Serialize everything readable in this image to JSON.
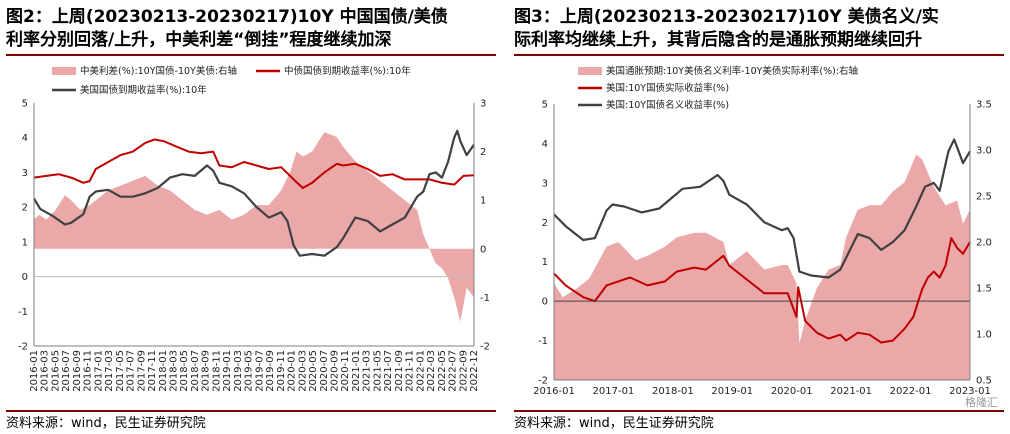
{
  "left": {
    "title_l1": "图2：上周(20230213-20230217)10Y 中国国债/美债",
    "title_l2": "利率分别回落/上升，中美利差“倒挂”程度继续加深",
    "source": "资料来源：wind，民生证券研究院"
  },
  "right": {
    "title_l1": "图3：上周(20230213-20230217)10Y 美债名义/实",
    "title_l2": "际利率均继续上升，其背后隐含的是通胀预期继续回升",
    "source": "资料来源：wind，民生证券研究院"
  },
  "watermark": "格隆汇",
  "colors": {
    "area": "#eaa8a8",
    "red": "#c00000",
    "dark": "#404040"
  },
  "chart_data": [
    {
      "type": "line",
      "legend_position": "top",
      "grid": false,
      "x_ticks": [
        "2016-01",
        "2016-03",
        "2016-05",
        "2016-07",
        "2016-09",
        "2016-11",
        "2017-01",
        "2017-03",
        "2017-05",
        "2017-07",
        "2017-09",
        "2017-11",
        "2018-01",
        "2018-03",
        "2018-05",
        "2018-07",
        "2018-09",
        "2018-11",
        "2019-01",
        "2019-03",
        "2019-05",
        "2019-07",
        "2019-09",
        "2019-11",
        "2020-01",
        "2020-03",
        "2020-05",
        "2020-07",
        "2020-09",
        "2020-11",
        "2021-01",
        "2021-03",
        "2021-05",
        "2021-07",
        "2021-09",
        "2021-11",
        "2022-01",
        "2022-03",
        "2022-05",
        "2022-07",
        "2022-09",
        "2022-12"
      ],
      "xlim": [
        2016.0,
        2023.12
      ],
      "ylim_left": [
        -2,
        5
      ],
      "ylim_right": [
        -2,
        3
      ],
      "yticks_left": [
        "-2",
        "-1",
        "0",
        "1",
        "2",
        "3",
        "4",
        "5"
      ],
      "yticks_right": [
        "-2",
        "-1",
        "0",
        "1",
        "2",
        "3"
      ],
      "series": [
        {
          "name": "中美利差(%):10Y国债-10Y美债:右轴",
          "type": "area",
          "axis": "right",
          "color": "#eaa8a8",
          "x": [
            2016.0,
            2016.08,
            2016.2,
            2016.35,
            2016.5,
            2016.6,
            2016.75,
            2016.9,
            2017.0,
            2017.2,
            2017.4,
            2017.6,
            2017.8,
            2018.0,
            2018.2,
            2018.4,
            2018.6,
            2018.8,
            2019.0,
            2019.2,
            2019.4,
            2019.6,
            2019.8,
            2020.0,
            2020.15,
            2020.25,
            2020.35,
            2020.5,
            2020.7,
            2020.9,
            2021.0,
            2021.2,
            2021.4,
            2021.6,
            2021.8,
            2022.0,
            2022.2,
            2022.3,
            2022.4,
            2022.5,
            2022.6,
            2022.7,
            2022.8,
            2022.9,
            2023.0,
            2023.12
          ],
          "values": [
            0.6,
            0.7,
            0.6,
            0.8,
            1.1,
            1.0,
            0.8,
            0.9,
            1.0,
            1.2,
            1.3,
            1.4,
            1.5,
            1.3,
            1.2,
            1.0,
            0.8,
            0.7,
            0.8,
            0.6,
            0.7,
            0.9,
            0.9,
            1.2,
            1.6,
            2.0,
            1.9,
            2.0,
            2.4,
            2.3,
            2.1,
            1.8,
            1.6,
            1.4,
            1.2,
            1.0,
            0.8,
            0.3,
            0.0,
            -0.3,
            -0.4,
            -0.6,
            -1.0,
            -1.5,
            -0.8,
            -1.0
          ]
        },
        {
          "name": "中债国债到期收益率(%):10年",
          "type": "line",
          "axis": "left",
          "color": "#c00000",
          "x": [
            2016.0,
            2016.2,
            2016.4,
            2016.6,
            2016.8,
            2016.9,
            2017.0,
            2017.2,
            2017.4,
            2017.6,
            2017.8,
            2017.95,
            2018.1,
            2018.3,
            2018.5,
            2018.7,
            2018.9,
            2019.0,
            2019.2,
            2019.4,
            2019.6,
            2019.8,
            2020.0,
            2020.2,
            2020.35,
            2020.5,
            2020.7,
            2020.9,
            2021.0,
            2021.2,
            2021.4,
            2021.6,
            2021.8,
            2022.0,
            2022.2,
            2022.4,
            2022.6,
            2022.8,
            2022.95,
            2023.12
          ],
          "values": [
            2.85,
            2.9,
            2.95,
            2.85,
            2.7,
            2.75,
            3.1,
            3.3,
            3.5,
            3.6,
            3.85,
            3.95,
            3.9,
            3.75,
            3.6,
            3.55,
            3.6,
            3.2,
            3.15,
            3.3,
            3.2,
            3.1,
            3.15,
            2.8,
            2.55,
            2.7,
            3.0,
            3.25,
            3.2,
            3.25,
            3.1,
            2.9,
            2.95,
            2.8,
            2.8,
            2.8,
            2.7,
            2.65,
            2.9,
            2.92
          ]
        },
        {
          "name": "美国国债到期收益率(%):10年",
          "type": "line",
          "axis": "left",
          "color": "#404040",
          "x": [
            2016.0,
            2016.1,
            2016.3,
            2016.5,
            2016.6,
            2016.8,
            2016.9,
            2017.0,
            2017.2,
            2017.4,
            2017.6,
            2017.8,
            2018.0,
            2018.2,
            2018.4,
            2018.6,
            2018.8,
            2018.9,
            2019.0,
            2019.2,
            2019.4,
            2019.6,
            2019.8,
            2020.0,
            2020.1,
            2020.2,
            2020.3,
            2020.5,
            2020.7,
            2020.9,
            2021.0,
            2021.2,
            2021.4,
            2021.6,
            2021.8,
            2022.0,
            2022.2,
            2022.3,
            2022.4,
            2022.5,
            2022.6,
            2022.7,
            2022.8,
            2022.85,
            2022.9,
            2023.0,
            2023.12
          ],
          "values": [
            2.25,
            1.95,
            1.75,
            1.5,
            1.55,
            1.8,
            2.3,
            2.45,
            2.5,
            2.3,
            2.3,
            2.4,
            2.55,
            2.85,
            2.95,
            2.9,
            3.2,
            3.05,
            2.7,
            2.6,
            2.4,
            2.0,
            1.7,
            1.85,
            1.6,
            0.9,
            0.6,
            0.65,
            0.6,
            0.85,
            1.1,
            1.7,
            1.6,
            1.3,
            1.5,
            1.7,
            2.3,
            2.45,
            2.95,
            3.0,
            2.85,
            3.3,
            4.0,
            4.2,
            3.9,
            3.5,
            3.8
          ]
        }
      ]
    },
    {
      "type": "line",
      "legend_position": "top",
      "grid": false,
      "x_ticks": [
        "2016-01",
        "2017-01",
        "2018-01",
        "2019-01",
        "2020-01",
        "2021-01",
        "2022-01",
        "2023-01"
      ],
      "xlim": [
        2016.0,
        2023.12
      ],
      "ylim_left": [
        -2,
        5
      ],
      "ylim_right": [
        0.5,
        3.5
      ],
      "yticks_left": [
        "-2",
        "-1",
        "0",
        "1",
        "2",
        "3",
        "4",
        "5"
      ],
      "yticks_right": [
        "0.5",
        "1.0",
        "1.5",
        "2.0",
        "2.5",
        "3.0",
        "3.5"
      ],
      "series": [
        {
          "name": "美国通胀预期:10Y美债名义利率-10Y美债实际利率(%):右轴",
          "type": "area",
          "axis": "right",
          "color": "#eaa8a8",
          "x": [
            2016.0,
            2016.15,
            2016.4,
            2016.6,
            2016.9,
            2017.1,
            2017.4,
            2017.6,
            2017.9,
            2018.1,
            2018.4,
            2018.6,
            2018.9,
            2019.0,
            2019.3,
            2019.6,
            2019.9,
            2020.0,
            2020.15,
            2020.2,
            2020.3,
            2020.5,
            2020.7,
            2020.9,
            2021.0,
            2021.2,
            2021.4,
            2021.6,
            2021.8,
            2022.0,
            2022.2,
            2022.3,
            2022.5,
            2022.7,
            2022.9,
            2023.0,
            2023.12
          ],
          "values": [
            1.55,
            1.4,
            1.5,
            1.6,
            1.95,
            2.0,
            1.8,
            1.85,
            1.95,
            2.05,
            2.1,
            2.1,
            2.0,
            1.75,
            1.9,
            1.7,
            1.75,
            1.75,
            1.55,
            0.9,
            1.15,
            1.5,
            1.7,
            1.75,
            2.05,
            2.35,
            2.4,
            2.4,
            2.55,
            2.65,
            2.95,
            2.9,
            2.6,
            2.4,
            2.45,
            2.2,
            2.35
          ]
        },
        {
          "name": "美国:10Y国债实际收益率(%)",
          "type": "line",
          "axis": "left",
          "color": "#c00000",
          "x": [
            2016.0,
            2016.2,
            2016.5,
            2016.7,
            2016.9,
            2017.0,
            2017.3,
            2017.6,
            2017.9,
            2018.1,
            2018.4,
            2018.6,
            2018.9,
            2019.0,
            2019.3,
            2019.6,
            2019.9,
            2020.0,
            2020.15,
            2020.18,
            2020.3,
            2020.5,
            2020.7,
            2020.9,
            2021.0,
            2021.2,
            2021.4,
            2021.6,
            2021.8,
            2022.0,
            2022.15,
            2022.3,
            2022.4,
            2022.5,
            2022.6,
            2022.7,
            2022.8,
            2022.9,
            2023.0,
            2023.12
          ],
          "values": [
            0.7,
            0.4,
            0.1,
            0.0,
            0.4,
            0.45,
            0.6,
            0.4,
            0.5,
            0.75,
            0.85,
            0.8,
            1.15,
            0.9,
            0.55,
            0.2,
            0.2,
            0.2,
            -0.4,
            0.35,
            -0.5,
            -0.8,
            -0.95,
            -0.85,
            -1.0,
            -0.8,
            -0.85,
            -1.05,
            -1.0,
            -0.7,
            -0.4,
            0.3,
            0.6,
            0.75,
            0.6,
            0.9,
            1.6,
            1.35,
            1.2,
            1.5
          ]
        },
        {
          "name": "美国:10Y国债名义收益率(%)",
          "type": "line",
          "axis": "left",
          "color": "#404040",
          "x": [
            2016.0,
            2016.2,
            2016.5,
            2016.7,
            2016.9,
            2017.0,
            2017.2,
            2017.5,
            2017.8,
            2018.0,
            2018.2,
            2018.5,
            2018.8,
            2018.9,
            2019.0,
            2019.3,
            2019.6,
            2019.9,
            2020.0,
            2020.1,
            2020.2,
            2020.4,
            2020.7,
            2020.9,
            2021.0,
            2021.2,
            2021.4,
            2021.6,
            2021.8,
            2022.0,
            2022.2,
            2022.35,
            2022.5,
            2022.6,
            2022.75,
            2022.85,
            2022.95,
            2023.0,
            2023.12
          ],
          "values": [
            2.2,
            1.9,
            1.55,
            1.6,
            2.3,
            2.45,
            2.4,
            2.25,
            2.35,
            2.6,
            2.85,
            2.9,
            3.2,
            3.05,
            2.7,
            2.45,
            2.0,
            1.8,
            1.85,
            1.6,
            0.75,
            0.65,
            0.6,
            0.8,
            1.1,
            1.7,
            1.6,
            1.3,
            1.5,
            1.8,
            2.4,
            2.9,
            3.0,
            2.8,
            3.8,
            4.1,
            3.7,
            3.5,
            3.8
          ]
        }
      ]
    }
  ]
}
